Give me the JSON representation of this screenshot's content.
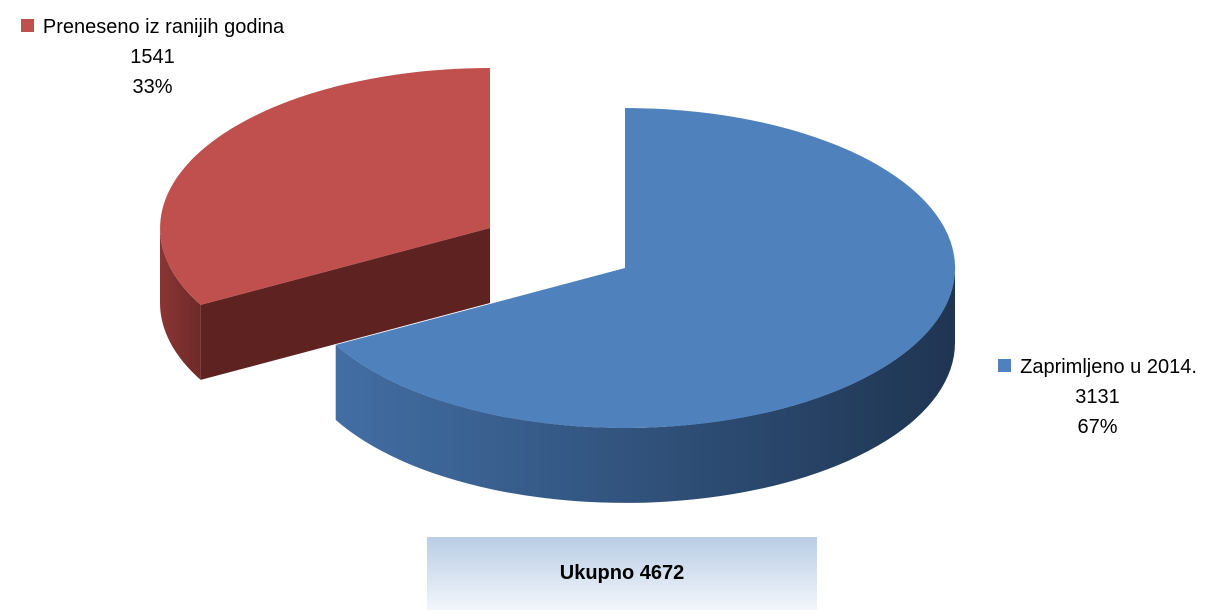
{
  "chart_data": {
    "type": "pie3d",
    "categories": [
      "Preneseno iz ranijih godina",
      "Zaprimljeno u 2014."
    ],
    "values": [
      1541,
      3131
    ],
    "percent_labels": [
      "33%",
      "67%"
    ],
    "colors": [
      "#c0504d",
      "#4f81bd"
    ],
    "annotation": "Ukupno 4672"
  }
}
